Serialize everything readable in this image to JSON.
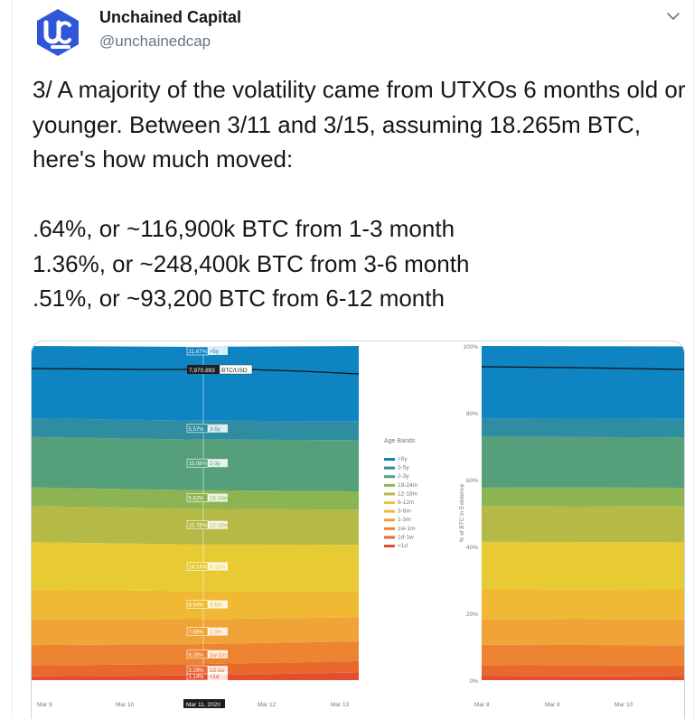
{
  "tweet": {
    "author_name": "Unchained Capital",
    "author_handle": "@unchainedcap",
    "logo_icon": "unchained-logo-icon",
    "caret_icon": "chevron-down-icon",
    "text": "3/ A majority of the volatility came from UTXOs 6 months old or younger. Between 3/11 and 3/15, assuming 18.265m BTC, here's how much moved:\n\n.64%, or ~116,900k BTC from 1-3 month\n1.36%, or ~248,400k BTC from 3-6 month\n.51%, or ~93,200 BTC from 6-12 month",
    "colors": {
      "text": "#14171a",
      "secondary": "#657786",
      "border": "#ccd6dd",
      "logo": "#2f56d9"
    }
  },
  "chart_data": [
    {
      "type": "area",
      "title": "",
      "stacked": true,
      "xlabel": "",
      "ylabel": "",
      "x_ticks": [
        "Mar 9",
        "Mar 10",
        "Mar 11, 2020",
        "Mar 12",
        "Mar 13"
      ],
      "highlighted_x_tick": "Mar 11, 2020",
      "ylim": [
        0,
        100
      ],
      "series": [
        {
          "name": "<1d",
          "color": "#e34f2e"
        },
        {
          "name": "1d-1w",
          "color": "#e8682e"
        },
        {
          "name": "1w-1m",
          "color": "#ec8432"
        },
        {
          "name": "1-3m",
          "color": "#f0a336"
        },
        {
          "name": "3-6m",
          "color": "#f0b934"
        },
        {
          "name": "6-12m",
          "color": "#e8cb34"
        },
        {
          "name": "12-18m",
          "color": "#b5b946"
        },
        {
          "name": "18-24m",
          "color": "#8db452"
        },
        {
          "name": "2-3y",
          "color": "#55a07a"
        },
        {
          "name": "3-5y",
          "color": "#2e8da0"
        },
        {
          "name": ">5y",
          "color": "#0e84c2"
        }
      ],
      "band_values_start": [
        1.14,
        3.29,
        6.08,
        7.69,
        8.94,
        14.14,
        10.78,
        5.62,
        15.08,
        5.57,
        21.67
      ],
      "band_values_end": [
        2.3,
        3.4,
        5.9,
        7.2,
        7.9,
        13.8,
        10.5,
        5.5,
        15.3,
        5.7,
        22.5
      ],
      "cursor_labels": [
        {
          "value": "21.67%",
          "band": ">5y"
        },
        {
          "value": "5.57%",
          "band": "3-5y"
        },
        {
          "value": "15.08%",
          "band": "2-3y"
        },
        {
          "value": "5.62%",
          "band": "18-24m"
        },
        {
          "value": "10.78%",
          "band": "12-18m"
        },
        {
          "value": "14.14%",
          "band": "6-12m"
        },
        {
          "value": "8.94%",
          "band": "3-6m"
        },
        {
          "value": "7.69%",
          "band": "1-3m"
        },
        {
          "value": "6.08%",
          "band": "1w-1m"
        },
        {
          "value": "3.29%",
          "band": "1d-1w"
        },
        {
          "value": "1.14%",
          "band": "<1d"
        }
      ],
      "price_line": {
        "label": "7,970.893",
        "name": "BTC/USD",
        "color": "#111111"
      }
    },
    {
      "type": "area",
      "title": "",
      "stacked": true,
      "ylabel": "% of BTC in Existence",
      "y_ticks": [
        "100%",
        "80%",
        "60%",
        "40%",
        "20%",
        "0%"
      ],
      "y_tick_values": [
        100,
        80,
        60,
        40,
        20,
        0
      ],
      "ylim": [
        0,
        100
      ],
      "x_ticks": [
        "Mar 8",
        "Mar 9",
        "Mar 10"
      ],
      "legend_title": "Age Bands",
      "legend_items": [
        ">5y",
        "3-5y",
        "2-3y",
        "18-24m",
        "12-18m",
        "6-12m",
        "3-6m",
        "1-3m",
        "1w-1m",
        "1d-1w",
        "<1d"
      ],
      "legend_colors": [
        "#0e84c2",
        "#2e8da0",
        "#55a07a",
        "#8db452",
        "#b5b946",
        "#e8cb34",
        "#f0b934",
        "#f0a336",
        "#ec8432",
        "#e8682e",
        "#e34f2e"
      ],
      "band_values": [
        1.2,
        3.3,
        6.1,
        7.7,
        9.0,
        14.1,
        10.7,
        5.6,
        15.1,
        5.5,
        21.7
      ],
      "price_line_color": "#111111"
    }
  ]
}
